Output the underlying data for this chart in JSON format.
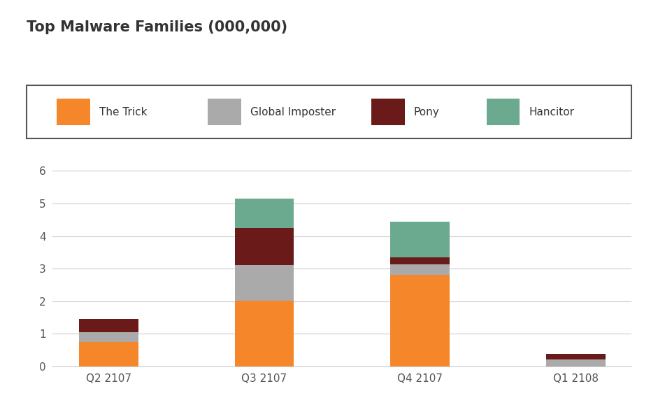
{
  "title": "Top Malware Families (000,000)",
  "categories": [
    "Q2 2107",
    "Q3 2107",
    "Q4 2107",
    "Q1 2108"
  ],
  "series": {
    "The Trick": [
      0.75,
      2.02,
      2.82,
      0.0
    ],
    "Global Imposter": [
      0.3,
      1.1,
      0.32,
      0.2
    ],
    "Pony": [
      0.4,
      1.12,
      0.2,
      0.18
    ],
    "Hancitor": [
      0.0,
      0.92,
      1.1,
      0.0
    ]
  },
  "colors": {
    "The Trick": "#F5872A",
    "Global Imposter": "#AAAAAA",
    "Pony": "#6B1A1A",
    "Hancitor": "#6BAA8E"
  },
  "ylim": [
    0,
    6.5
  ],
  "yticks": [
    0,
    1,
    2,
    3,
    4,
    5,
    6
  ],
  "bar_width": 0.38,
  "legend_border_color": "#555555",
  "bg_color": "#FFFFFF",
  "title_fontsize": 15,
  "legend_fontsize": 11,
  "tick_fontsize": 11
}
